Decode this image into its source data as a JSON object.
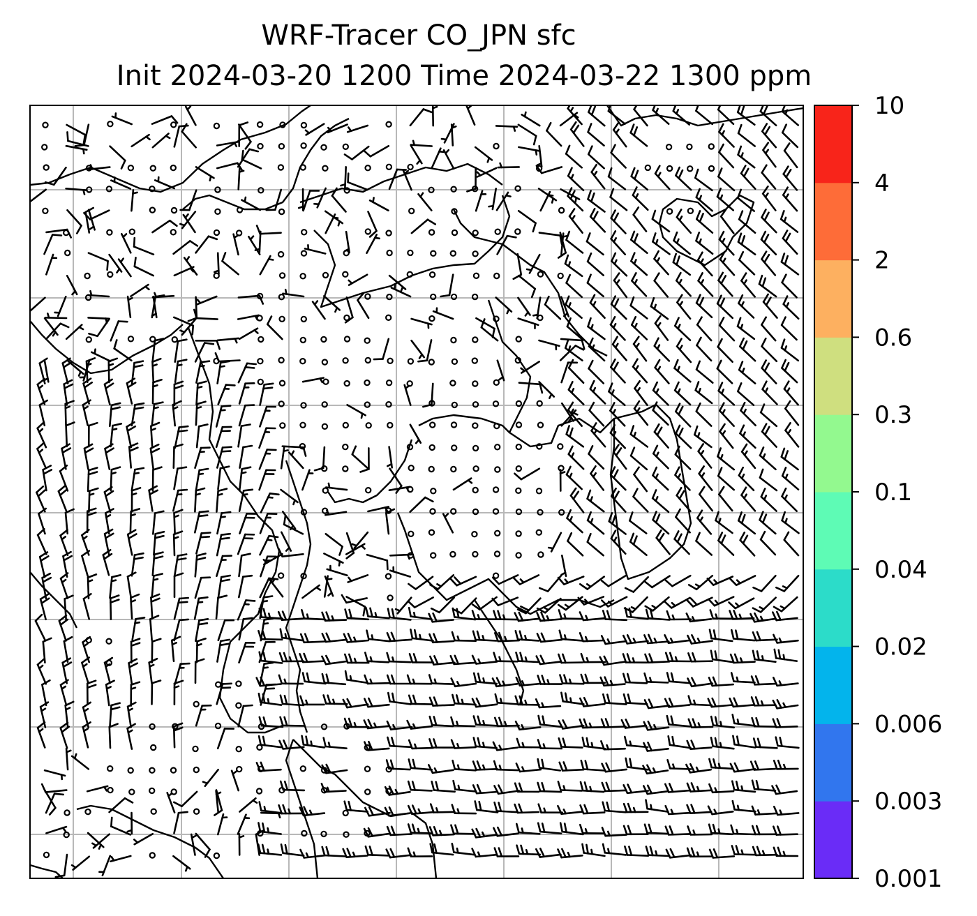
{
  "title": {
    "line1": "WRF-Tracer CO_JPN sfc",
    "line2": "Init 2024-03-20 1200 Time 2024-03-22 1300 ppm"
  },
  "map": {
    "grid_lines": true,
    "grid_color": "#b8b8b8",
    "coastline_color": "#000000",
    "field_shown": "surface wind barbs"
  },
  "colorbar": {
    "levels": [
      "0.001",
      "0.003",
      "0.006",
      "0.02",
      "0.04",
      "0.1",
      "0.3",
      "0.6",
      "2",
      "4",
      "10"
    ],
    "colors": [
      "#6a2cf7",
      "#3176ee",
      "#03b4ec",
      "#2cdcc9",
      "#5efbb5",
      "#93f98f",
      "#cfdf7f",
      "#fdb060",
      "#fe6c38",
      "#f8241a"
    ]
  }
}
